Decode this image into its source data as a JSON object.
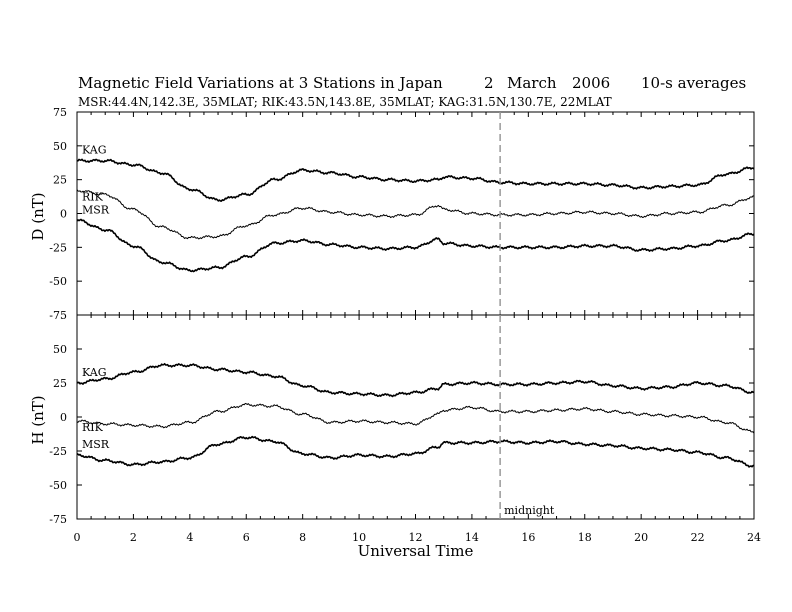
{
  "title": {
    "main": "Magnetic Field Variations at 3 Stations in Japan",
    "day": "2",
    "month": "March",
    "year": "2006",
    "averaging": "10-s averages"
  },
  "subtitle": "MSR:44.4N,142.3E, 35MLAT;   RIK:43.5N,143.8E, 35MLAT;   KAG:31.5N,130.7E, 22MLAT",
  "colors": {
    "trace": "#000000",
    "midnight_line": "#999999",
    "axes": "#000000"
  },
  "chart_data": [
    {
      "type": "line",
      "panel": "D",
      "ylabel": "D (nT)",
      "ylim": [
        -75,
        75
      ],
      "yticks": [
        75,
        50,
        25,
        0,
        -25,
        -50,
        -75
      ],
      "xlim": [
        0,
        24
      ],
      "series": [
        {
          "name": "KAG",
          "x": [
            0,
            1,
            2,
            3,
            4,
            5,
            6,
            7,
            8,
            9,
            10,
            11,
            12,
            12.8,
            13,
            14,
            15,
            16,
            17,
            18,
            19,
            20,
            21,
            22,
            23,
            24
          ],
          "y": [
            39,
            39,
            36,
            30,
            18,
            10,
            14,
            25,
            32,
            30,
            27,
            25,
            24,
            25,
            27,
            26,
            23,
            22,
            22,
            22,
            21,
            19,
            20,
            21,
            29,
            34
          ]
        },
        {
          "name": "RIK",
          "x": [
            0,
            1,
            2,
            3,
            4,
            5,
            6,
            7,
            8,
            9,
            10,
            11,
            12,
            12.8,
            13,
            14,
            15,
            16,
            17,
            18,
            19,
            20,
            21,
            22,
            23,
            24
          ],
          "y": [
            17,
            14,
            3,
            -10,
            -18,
            -17,
            -9,
            -1,
            4,
            1,
            -1,
            -2,
            -1,
            6,
            3,
            0,
            -1,
            -1,
            0,
            1,
            0,
            -2,
            0,
            1,
            6,
            12
          ]
        },
        {
          "name": "MSR",
          "x": [
            0,
            1,
            2,
            3,
            4,
            5,
            6,
            7,
            8,
            9,
            10,
            11,
            12,
            12.8,
            13,
            14,
            15,
            16,
            17,
            18,
            19,
            20,
            21,
            22,
            23,
            24
          ],
          "y": [
            -5,
            -12,
            -24,
            -36,
            -42,
            -40,
            -32,
            -22,
            -20,
            -23,
            -25,
            -26,
            -25,
            -19,
            -22,
            -24,
            -25,
            -25,
            -25,
            -24,
            -24,
            -27,
            -26,
            -24,
            -20,
            -15
          ]
        }
      ]
    },
    {
      "type": "line",
      "panel": "H",
      "ylabel": "H (nT)",
      "xlabel": "Universal Time",
      "ylim": [
        -75,
        75
      ],
      "yticks": [
        75,
        50,
        25,
        0,
        -25,
        -50,
        -75
      ],
      "xlim": [
        0,
        24
      ],
      "xticks": [
        0,
        2,
        4,
        6,
        8,
        10,
        12,
        14,
        16,
        18,
        20,
        22,
        24
      ],
      "series": [
        {
          "name": "KAG",
          "x": [
            0,
            1,
            2,
            3,
            4,
            5,
            6,
            7,
            8,
            9,
            10,
            11,
            12,
            12.8,
            13,
            14,
            15,
            16,
            17,
            18,
            19,
            20,
            21,
            22,
            23,
            24
          ],
          "y": [
            25,
            28,
            33,
            38,
            38,
            35,
            33,
            30,
            23,
            18,
            17,
            16,
            18,
            21,
            24,
            25,
            24,
            24,
            25,
            26,
            23,
            21,
            22,
            25,
            23,
            18
          ]
        },
        {
          "name": "RIK",
          "x": [
            0,
            1,
            2,
            3,
            4,
            5,
            6,
            7,
            8,
            9,
            10,
            11,
            12,
            12.8,
            13,
            14,
            15,
            16,
            17,
            18,
            19,
            20,
            21,
            22,
            23,
            24
          ],
          "y": [
            -3,
            -5,
            -6,
            -7,
            -4,
            4,
            9,
            8,
            2,
            -4,
            -3,
            -4,
            -5,
            2,
            5,
            7,
            4,
            4,
            5,
            6,
            4,
            2,
            1,
            0,
            -4,
            -11
          ]
        },
        {
          "name": "MSR",
          "x": [
            0,
            1,
            2,
            3,
            4,
            5,
            6,
            7,
            8,
            9,
            10,
            11,
            12,
            12.8,
            13,
            14,
            15,
            16,
            17,
            18,
            19,
            20,
            21,
            22,
            23,
            24
          ],
          "y": [
            -28,
            -32,
            -35,
            -33,
            -30,
            -20,
            -15,
            -18,
            -27,
            -30,
            -28,
            -29,
            -27,
            -22,
            -19,
            -19,
            -18,
            -19,
            -18,
            -20,
            -21,
            -23,
            -24,
            -26,
            -30,
            -36
          ]
        }
      ]
    }
  ],
  "annotations": {
    "midnight": {
      "x": 15,
      "label": "midnight"
    }
  }
}
